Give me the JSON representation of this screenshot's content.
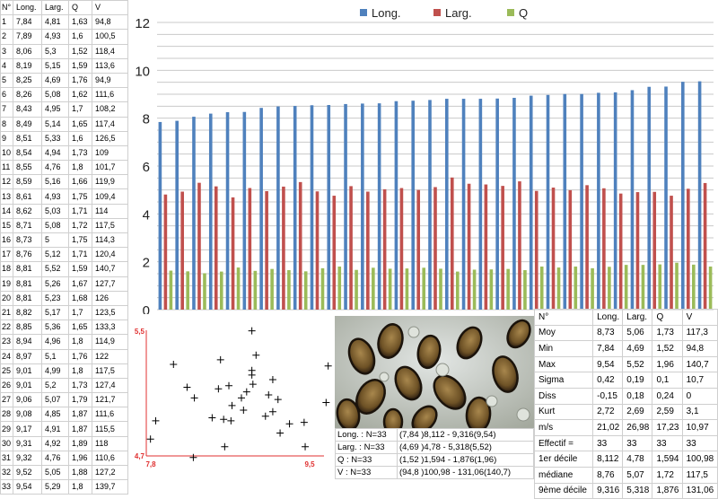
{
  "table": {
    "headers": [
      "N°",
      "Long.",
      "Larg.",
      "Q",
      "V"
    ],
    "rows": [
      [
        "1",
        "7,84",
        "4,81",
        "1,63",
        "94,8"
      ],
      [
        "2",
        "7,89",
        "4,93",
        "1,6",
        "100,5"
      ],
      [
        "3",
        "8,06",
        "5,3",
        "1,52",
        "118,4"
      ],
      [
        "4",
        "8,19",
        "5,15",
        "1,59",
        "113,6"
      ],
      [
        "5",
        "8,25",
        "4,69",
        "1,76",
        "94,9"
      ],
      [
        "6",
        "8,26",
        "5,08",
        "1,62",
        "111,6"
      ],
      [
        "7",
        "8,43",
        "4,95",
        "1,7",
        "108,2"
      ],
      [
        "8",
        "8,49",
        "5,14",
        "1,65",
        "117,4"
      ],
      [
        "9",
        "8,51",
        "5,33",
        "1,6",
        "126,5"
      ],
      [
        "10",
        "8,54",
        "4,94",
        "1,73",
        "109"
      ],
      [
        "11",
        "8,55",
        "4,76",
        "1,8",
        "101,7"
      ],
      [
        "12",
        "8,59",
        "5,16",
        "1,66",
        "119,9"
      ],
      [
        "13",
        "8,61",
        "4,93",
        "1,75",
        "109,4"
      ],
      [
        "14",
        "8,62",
        "5,03",
        "1,71",
        "114"
      ],
      [
        "15",
        "8,71",
        "5,08",
        "1,72",
        "117,5"
      ],
      [
        "16",
        "8,73",
        "5",
        "1,75",
        "114,3"
      ],
      [
        "17",
        "8,76",
        "5,12",
        "1,71",
        "120,4"
      ],
      [
        "18",
        "8,81",
        "5,52",
        "1,59",
        "140,7"
      ],
      [
        "19",
        "8,81",
        "5,26",
        "1,67",
        "127,7"
      ],
      [
        "20",
        "8,81",
        "5,23",
        "1,68",
        "126"
      ],
      [
        "21",
        "8,82",
        "5,17",
        "1,7",
        "123,5"
      ],
      [
        "22",
        "8,85",
        "5,36",
        "1,65",
        "133,3"
      ],
      [
        "23",
        "8,94",
        "4,96",
        "1,8",
        "114,9"
      ],
      [
        "24",
        "8,97",
        "5,1",
        "1,76",
        "122"
      ],
      [
        "25",
        "9,01",
        "4,99",
        "1,8",
        "117,5"
      ],
      [
        "26",
        "9,01",
        "5,2",
        "1,73",
        "127,4"
      ],
      [
        "27",
        "9,06",
        "5,07",
        "1,79",
        "121,7"
      ],
      [
        "28",
        "9,08",
        "4,85",
        "1,87",
        "111,6"
      ],
      [
        "29",
        "9,17",
        "4,91",
        "1,87",
        "115,5"
      ],
      [
        "30",
        "9,31",
        "4,92",
        "1,89",
        "118"
      ],
      [
        "31",
        "9,32",
        "4,76",
        "1,96",
        "110,6"
      ],
      [
        "32",
        "9,52",
        "5,05",
        "1,88",
        "127,2"
      ],
      [
        "33",
        "9,54",
        "5,29",
        "1,8",
        "139,7"
      ]
    ]
  },
  "chart_data": [
    {
      "type": "bar",
      "categories": [
        "1",
        "2",
        "3",
        "4",
        "5",
        "6",
        "7",
        "8",
        "9",
        "10",
        "11",
        "12",
        "13",
        "14",
        "15",
        "16",
        "17",
        "18",
        "19",
        "20",
        "21",
        "22",
        "23",
        "24",
        "25",
        "26",
        "27",
        "28",
        "29",
        "30",
        "31",
        "32",
        "33"
      ],
      "series": [
        {
          "name": "Long.",
          "color": "#4f81bd",
          "values": [
            7.84,
            7.89,
            8.06,
            8.19,
            8.25,
            8.26,
            8.43,
            8.49,
            8.51,
            8.54,
            8.55,
            8.59,
            8.61,
            8.62,
            8.71,
            8.73,
            8.76,
            8.81,
            8.81,
            8.81,
            8.82,
            8.85,
            8.94,
            8.97,
            9.01,
            9.01,
            9.06,
            9.08,
            9.17,
            9.31,
            9.32,
            9.52,
            9.54
          ]
        },
        {
          "name": "Larg.",
          "color": "#c0504d",
          "values": [
            4.81,
            4.93,
            5.3,
            5.15,
            4.69,
            5.08,
            4.95,
            5.14,
            5.33,
            4.94,
            4.76,
            5.16,
            4.93,
            5.03,
            5.08,
            5,
            5.12,
            5.52,
            5.26,
            5.23,
            5.17,
            5.36,
            4.96,
            5.1,
            4.99,
            5.2,
            5.07,
            4.85,
            4.91,
            4.92,
            4.76,
            5.05,
            5.29
          ]
        },
        {
          "name": "Q",
          "color": "#9bbb59",
          "values": [
            1.63,
            1.6,
            1.52,
            1.59,
            1.76,
            1.62,
            1.7,
            1.65,
            1.6,
            1.73,
            1.8,
            1.66,
            1.75,
            1.71,
            1.72,
            1.75,
            1.71,
            1.59,
            1.67,
            1.68,
            1.7,
            1.65,
            1.8,
            1.76,
            1.8,
            1.73,
            1.79,
            1.87,
            1.87,
            1.89,
            1.96,
            1.88,
            1.8
          ]
        }
      ],
      "ylim": [
        0,
        12
      ],
      "yticks": [
        "0",
        "2",
        "4",
        "6",
        "8",
        "10",
        "12"
      ],
      "grid": true,
      "legend": "top"
    },
    {
      "type": "scatter",
      "x": [
        7.84,
        7.89,
        8.06,
        8.19,
        8.25,
        8.26,
        8.43,
        8.49,
        8.51,
        8.54,
        8.55,
        8.59,
        8.61,
        8.62,
        8.71,
        8.73,
        8.76,
        8.81,
        8.81,
        8.81,
        8.82,
        8.85,
        8.94,
        8.97,
        9.01,
        9.01,
        9.06,
        9.08,
        9.17,
        9.31,
        9.32,
        9.52,
        9.54
      ],
      "y": [
        4.81,
        4.93,
        5.3,
        5.15,
        4.69,
        5.08,
        4.95,
        5.14,
        5.33,
        4.94,
        4.76,
        5.16,
        4.93,
        5.03,
        5.08,
        5,
        5.12,
        5.52,
        5.26,
        5.23,
        5.17,
        5.36,
        4.96,
        5.1,
        4.99,
        5.2,
        5.07,
        4.85,
        4.91,
        4.92,
        4.76,
        5.05,
        5.29
      ],
      "xlim": [
        7.8,
        9.5
      ],
      "ylim": [
        4.7,
        5.5
      ],
      "x_min_label": "7,8",
      "x_max_label": "9,5",
      "y_min_label": "4,7",
      "y_max_label": "5,5",
      "axis_color": "#e03030"
    }
  ],
  "summary": [
    [
      "Long. : N=33",
      "(7,84 )8,112 - 9,316(9,54)"
    ],
    [
      "Larg. : N=33",
      "(4,69 )4,78 - 5,318(5,52)"
    ],
    [
      "Q : N=33",
      "(1,52 )1,594 - 1,876(1,96)"
    ],
    [
      "V : N=33",
      "(94,8 )100,98 - 131,06(140,7)"
    ]
  ],
  "stats": {
    "headers": [
      "N°",
      "Long.",
      "Larg.",
      "Q",
      "V"
    ],
    "rows": [
      [
        "Moy",
        "8,73",
        "5,06",
        "1,73",
        "117,3"
      ],
      [
        "Min",
        "7,84",
        "4,69",
        "1,52",
        "94,8"
      ],
      [
        "Max",
        "9,54",
        "5,52",
        "1,96",
        "140,7"
      ],
      [
        "Sigma",
        "0,42",
        "0,19",
        "0,1",
        "10,7"
      ],
      [
        "Diss",
        "-0,15",
        "0,18",
        "0,24",
        "0"
      ],
      [
        "Kurt",
        "2,72",
        "2,69",
        "2,59",
        "3,1"
      ],
      [
        "m/s",
        "21,02",
        "26,98",
        "17,23",
        "10,97"
      ],
      [
        "Effectif =",
        "33",
        "33",
        "33",
        "33"
      ],
      [
        "1er décile",
        "8,112",
        "4,78",
        "1,594",
        "100,98"
      ],
      [
        "médiane",
        "8,76",
        "5,07",
        "1,72",
        "117,5"
      ],
      [
        "9ème décile",
        "9,316",
        "5,318",
        "1,876",
        "131,06"
      ]
    ]
  }
}
